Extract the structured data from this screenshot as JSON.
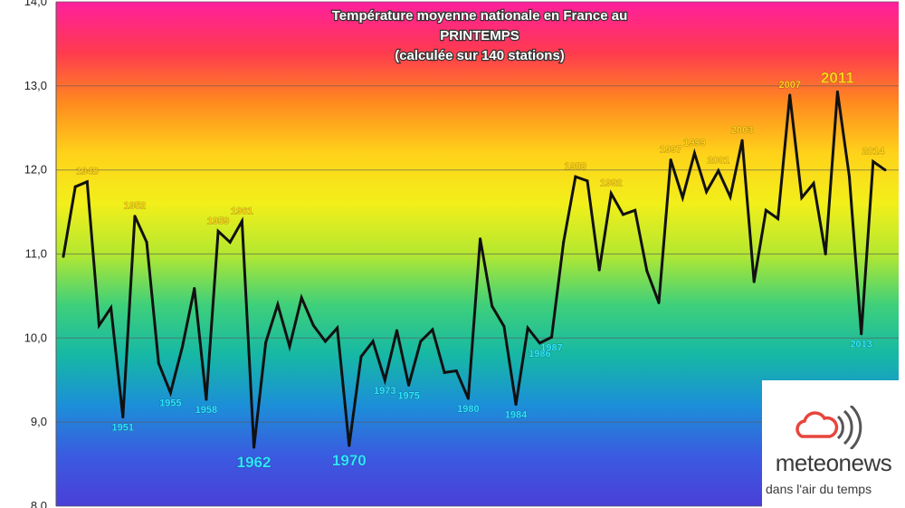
{
  "chart_data": {
    "type": "line",
    "title": [
      "Température moyenne nationale en France au",
      "PRINTEMPS",
      "(calculée sur 140 stations)"
    ],
    "xlabel": "",
    "ylabel": "",
    "ylim": [
      8.0,
      14.0
    ],
    "yticks": [
      "8,0",
      "9,0",
      "10,0",
      "11,0",
      "12,0",
      "13,0",
      "14,0"
    ],
    "grid": true,
    "x_start": 1946,
    "series": [
      {
        "color": "#111111",
        "x": [
          1946,
          1947,
          1948,
          1949,
          1950,
          1951,
          1952,
          1953,
          1954,
          1955,
          1956,
          1957,
          1958,
          1959,
          1960,
          1961,
          1962,
          1963,
          1964,
          1965,
          1966,
          1967,
          1968,
          1969,
          1970,
          1971,
          1972,
          1973,
          1974,
          1975,
          1976,
          1977,
          1978,
          1979,
          1980,
          1981,
          1982,
          1983,
          1984,
          1985,
          1986,
          1987,
          1988,
          1989,
          1990,
          1991,
          1992,
          1993,
          1994,
          1995,
          1996,
          1997,
          1998,
          1999,
          2000,
          2001,
          2002,
          2003,
          2004,
          2005,
          2006,
          2007,
          2008,
          2009,
          2010,
          2011,
          2012,
          2013,
          2014,
          2015
        ],
        "values": [
          10.97,
          11.8,
          11.86,
          10.15,
          10.36,
          9.06,
          11.45,
          11.14,
          9.7,
          9.35,
          9.9,
          10.59,
          9.27,
          11.27,
          11.14,
          11.39,
          8.7,
          9.95,
          10.4,
          9.9,
          10.48,
          10.15,
          9.96,
          10.12,
          8.72,
          9.78,
          9.96,
          9.5,
          10.09,
          9.44,
          9.96,
          10.1,
          9.59,
          9.61,
          9.28,
          11.18,
          10.38,
          10.14,
          9.21,
          10.12,
          9.94,
          10.01,
          11.14,
          11.92,
          11.87,
          10.81,
          11.72,
          11.47,
          11.52,
          10.8,
          10.42,
          12.12,
          11.67,
          12.2,
          11.74,
          11.99,
          11.68,
          12.35,
          10.67,
          11.52,
          11.42,
          12.89,
          11.67,
          11.84,
          11.0,
          12.93,
          11.92,
          10.05,
          12.1,
          12.0
        ]
      }
    ],
    "annotations": [
      {
        "year": 1948,
        "text": "1948",
        "color": "#ffd21a",
        "size": "small"
      },
      {
        "year": 1951,
        "text": "1951",
        "color": "#2ee6ff",
        "size": "small"
      },
      {
        "year": 1952,
        "text": "1952",
        "color": "#ffd21a",
        "size": "small"
      },
      {
        "year": 1955,
        "text": "1955",
        "color": "#2ee6ff",
        "size": "small"
      },
      {
        "year": 1958,
        "text": "1958",
        "color": "#2ee6ff",
        "size": "small"
      },
      {
        "year": 1959,
        "text": "1959",
        "color": "#ffd21a",
        "size": "small"
      },
      {
        "year": 1961,
        "text": "1961",
        "color": "#ffd21a",
        "size": "small"
      },
      {
        "year": 1962,
        "text": "1962",
        "color": "#2ee6ff",
        "size": "big"
      },
      {
        "year": 1970,
        "text": "1970",
        "color": "#2ee6ff",
        "size": "big"
      },
      {
        "year": 1973,
        "text": "1973",
        "color": "#2ee6ff",
        "size": "small"
      },
      {
        "year": 1975,
        "text": "1975",
        "color": "#2ee6ff",
        "size": "small"
      },
      {
        "year": 1980,
        "text": "1980",
        "color": "#2ee6ff",
        "size": "small"
      },
      {
        "year": 1984,
        "text": "1984",
        "color": "#2ee6ff",
        "size": "small"
      },
      {
        "year": 1986,
        "text": "1986",
        "color": "#2ee6ff",
        "size": "small"
      },
      {
        "year": 1987,
        "text": "1987",
        "color": "#2ee6ff",
        "size": "small"
      },
      {
        "year": 1989,
        "text": "1989",
        "color": "#ffd21a",
        "size": "small"
      },
      {
        "year": 1992,
        "text": "1992",
        "color": "#ffd21a",
        "size": "small"
      },
      {
        "year": 1997,
        "text": "1997",
        "color": "#ffd21a",
        "size": "small"
      },
      {
        "year": 1999,
        "text": "1999",
        "color": "#ffd21a",
        "size": "small"
      },
      {
        "year": 2001,
        "text": "2001",
        "color": "#ffd21a",
        "size": "small"
      },
      {
        "year": 2003,
        "text": "2003",
        "color": "#ffd21a",
        "size": "small"
      },
      {
        "year": 2007,
        "text": "2007",
        "color": "#ffd21a",
        "size": "small"
      },
      {
        "year": 2011,
        "text": "2011",
        "color": "#ffd21a",
        "size": "big"
      },
      {
        "year": 2013,
        "text": "2013",
        "color": "#2ee6ff",
        "size": "small"
      },
      {
        "year": 2014,
        "text": "2014",
        "color": "#ffd21a",
        "size": "small"
      }
    ],
    "background_gradient": [
      "#ff1f9e",
      "#ff3a4f",
      "#ff8a1f",
      "#ffd21a",
      "#f2ef1a",
      "#b4e830",
      "#3fd07a",
      "#16b8a5",
      "#1c8fd8",
      "#3a5be0",
      "#4a3fd8"
    ]
  },
  "logo": {
    "name": "meteonews",
    "tagline": "dans l'air du temps",
    "icon": "cloud-wave-icon",
    "cloud_color": "#e8453c",
    "wave_color": "#555555"
  }
}
